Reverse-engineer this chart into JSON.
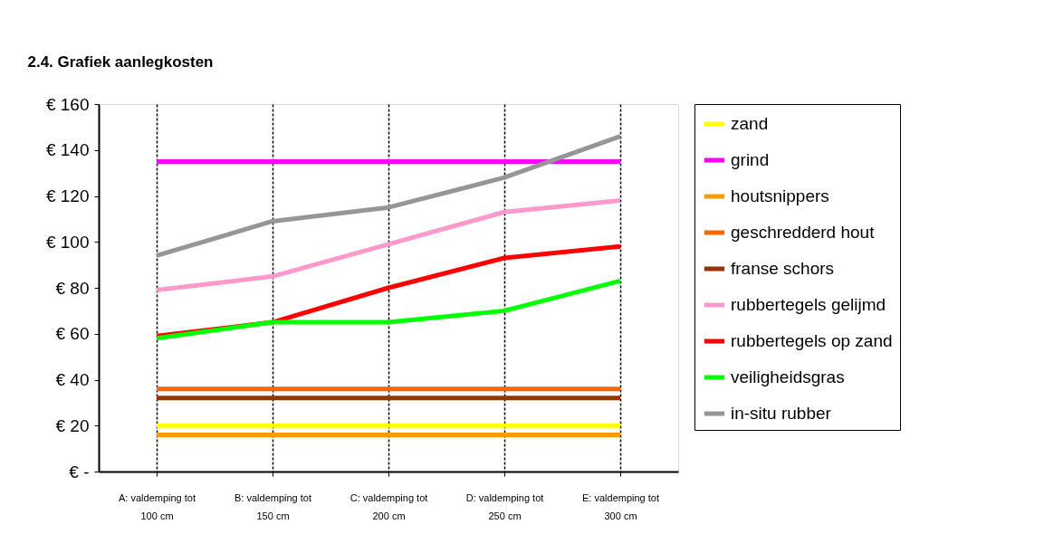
{
  "chart_data": {
    "type": "line",
    "title": "2.4. Grafiek aanlegkosten",
    "categories": [
      "A: valdemping tot\n100 cm",
      "B: valdemping tot\n150 cm",
      "C: valdemping tot\n200 cm",
      "D: valdemping tot\n250 cm",
      "E: valdemping tot\n300 cm"
    ],
    "series": [
      {
        "name": "zand",
        "color": "#ffff00",
        "values": [
          20,
          20,
          20,
          20,
          20
        ]
      },
      {
        "name": "grind",
        "color": "#ff00ff",
        "values": [
          135,
          135,
          135,
          135,
          135
        ]
      },
      {
        "name": "houtsnippers",
        "color": "#ff9900",
        "values": [
          16,
          16,
          16,
          16,
          16
        ]
      },
      {
        "name": "geschredderd hout",
        "color": "#ff6600",
        "values": [
          36,
          36,
          36,
          36,
          36
        ]
      },
      {
        "name": "franse schors",
        "color": "#993300",
        "values": [
          32,
          32,
          32,
          32,
          32
        ]
      },
      {
        "name": "rubbertegels gelijmd",
        "color": "#ff99cc",
        "values": [
          79,
          85,
          99,
          113,
          118
        ]
      },
      {
        "name": "rubbertegels op zand",
        "color": "#ff0000",
        "values": [
          59,
          65,
          80,
          93,
          98
        ]
      },
      {
        "name": "veiligheidsgras",
        "color": "#00ff00",
        "values": [
          58,
          65,
          65,
          70,
          83
        ]
      },
      {
        "name": "in-situ rubber",
        "color": "#969696",
        "values": [
          94,
          109,
          115,
          128,
          146
        ]
      }
    ],
    "ylim": [
      0,
      160
    ],
    "yticks": [
      {
        "value": 0,
        "label": "€ -"
      },
      {
        "value": 20,
        "label": "€ 20"
      },
      {
        "value": 40,
        "label": "€ 40"
      },
      {
        "value": 60,
        "label": "€ 60"
      },
      {
        "value": 80,
        "label": "€ 80"
      },
      {
        "value": 100,
        "label": "€ 100"
      },
      {
        "value": 120,
        "label": "€ 120"
      },
      {
        "value": 140,
        "label": "€ 140"
      },
      {
        "value": 160,
        "label": "€ 160"
      }
    ],
    "grid": "x",
    "legend": "right",
    "marker": "none",
    "line_style": "solid"
  }
}
